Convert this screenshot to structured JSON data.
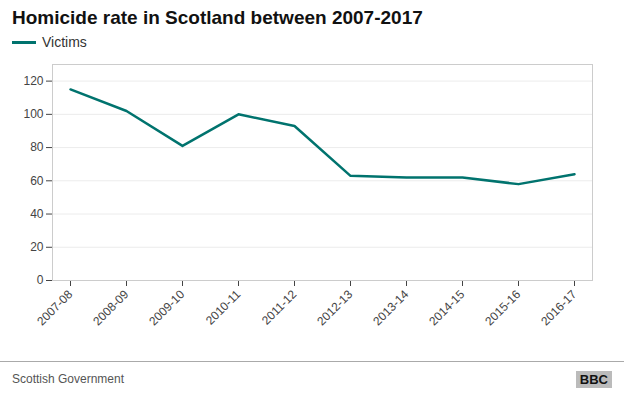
{
  "chart_data": {
    "type": "line",
    "title": "Homicide rate in Scotland between 2007-2017",
    "categories": [
      "2007-08",
      "2008-09",
      "2009-10",
      "2010-11",
      "2011-12",
      "2012-13",
      "2013-14",
      "2014-15",
      "2015-16",
      "2016-17"
    ],
    "series": [
      {
        "name": "Victims",
        "color": "#00736e",
        "values": [
          115,
          102,
          81,
          100,
          93,
          63,
          62,
          62,
          58,
          64
        ]
      }
    ],
    "ylim": [
      0,
      130
    ],
    "yticks": [
      0,
      20,
      40,
      60,
      80,
      100,
      120
    ],
    "grid": true,
    "legend": "upper left",
    "source": "Scottish Government",
    "annotations": [
      "BBC"
    ]
  }
}
